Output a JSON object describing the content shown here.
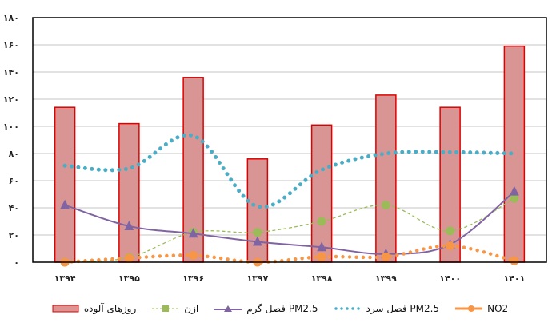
{
  "chart_data": {
    "type": "bar",
    "title": "",
    "xlabel": "",
    "ylabel": "",
    "ylim": [
      0,
      180
    ],
    "yticks": [
      "۰",
      "۲۰",
      "۴۰",
      "۶۰",
      "۸۰",
      "۱۰۰",
      "۱۲۰",
      "۱۴۰",
      "۱۶۰",
      "۱۸۰"
    ],
    "ytick_values": [
      0,
      20,
      40,
      60,
      80,
      100,
      120,
      140,
      160,
      180
    ],
    "grid": true,
    "legend_position": "bottom",
    "categories": [
      "۱۳۹۴",
      "۱۳۹۵",
      "۱۳۹۶",
      "۱۳۹۷",
      "۱۳۹۸",
      "۱۳۹۹",
      "۱۴۰۰",
      "۱۴۰۱"
    ],
    "series": [
      {
        "name": "روزهای آلوده",
        "type": "bar",
        "color": "#d99594",
        "edge": "#e00000",
        "values": [
          114,
          102,
          136,
          76,
          101,
          123,
          114,
          159
        ]
      },
      {
        "name": "ازن",
        "type": "line",
        "style": "dashed",
        "marker": "circle",
        "color": "#9bbb59",
        "values": [
          0,
          3.5,
          22,
          22,
          30,
          42,
          23,
          47
        ]
      },
      {
        "name": "فصل گرم PM2.5",
        "type": "line",
        "style": "solid",
        "marker": "triangle",
        "color": "#8064a2",
        "values": [
          42,
          26.5,
          21,
          15,
          11,
          6,
          13,
          52
        ]
      },
      {
        "name": "فصل سرد PM2.5",
        "type": "line",
        "style": "dotted",
        "marker": "none",
        "color": "#4bacc6",
        "values": [
          71,
          69,
          93,
          41,
          68,
          80,
          81,
          80
        ]
      },
      {
        "name": "NO2",
        "type": "line",
        "style": "dotted",
        "marker": "circle",
        "color": "#f79646",
        "values": [
          0,
          3,
          5,
          0,
          4,
          4,
          12,
          1
        ]
      }
    ]
  }
}
